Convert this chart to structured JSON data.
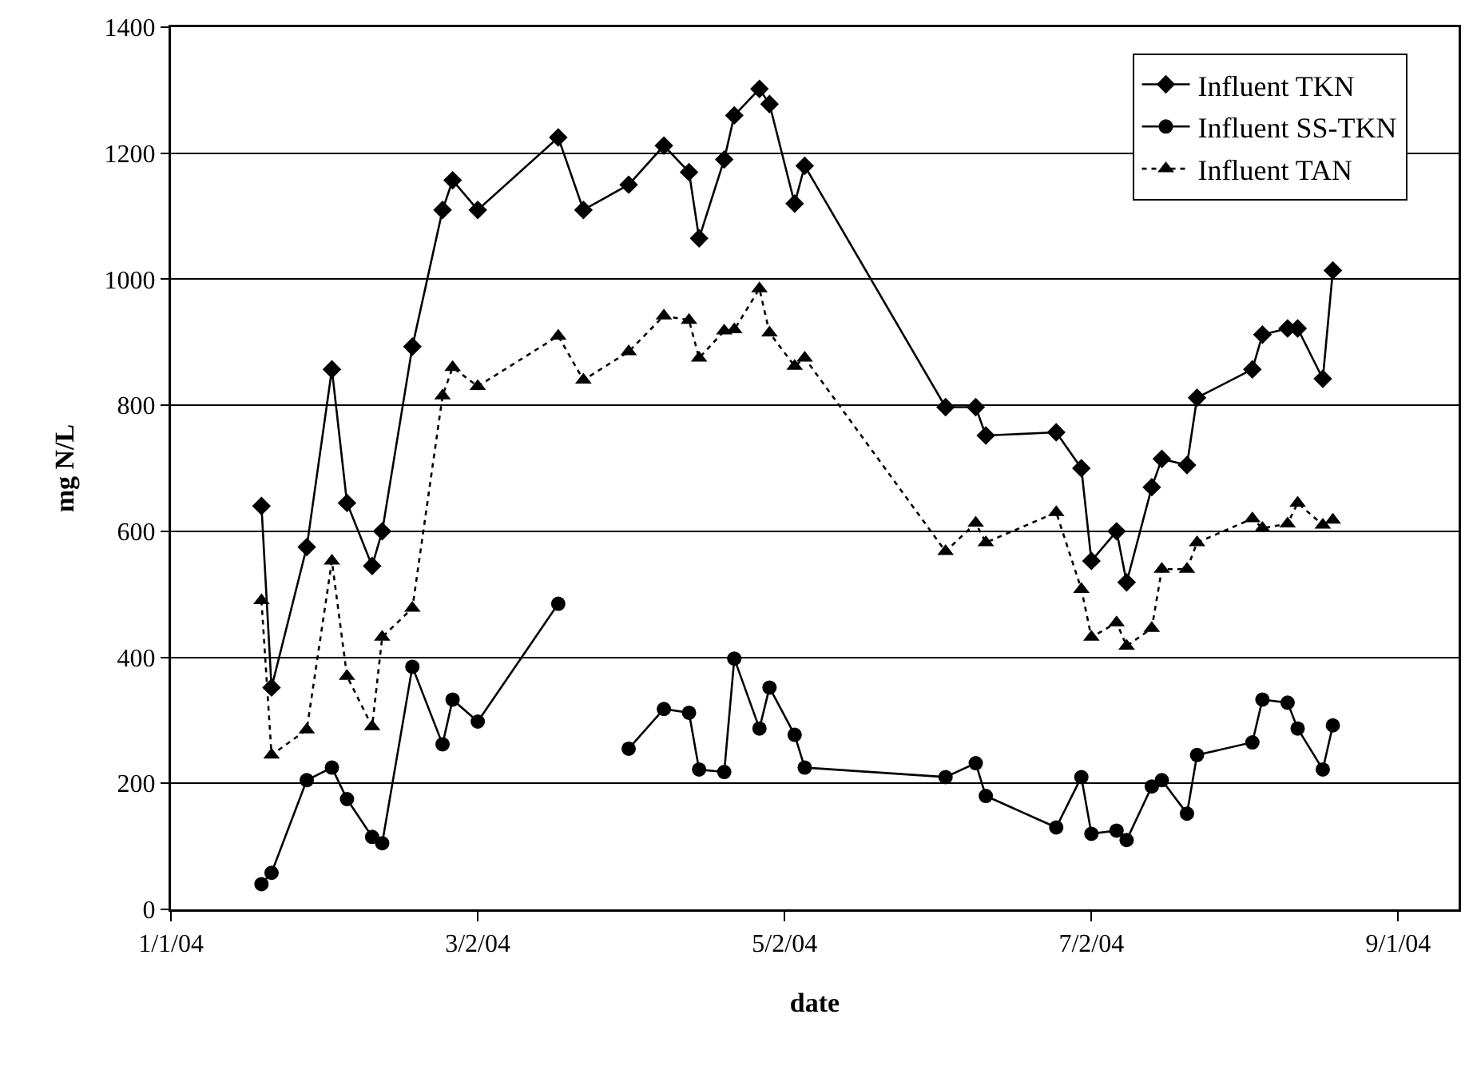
{
  "chart_data": {
    "type": "line",
    "xlabel": "date",
    "ylabel": "mg N/L",
    "x": [
      "2004-01-19",
      "2004-01-21",
      "2004-01-28",
      "2004-02-02",
      "2004-02-05",
      "2004-02-10",
      "2004-02-12",
      "2004-02-18",
      "2004-02-24",
      "2004-02-26",
      "2004-03-02",
      "2004-03-18",
      "2004-03-23",
      "2004-04-01",
      "2004-04-08",
      "2004-04-13",
      "2004-04-15",
      "2004-04-20",
      "2004-04-22",
      "2004-04-27",
      "2004-04-29",
      "2004-05-04",
      "2004-05-06",
      "2004-06-03",
      "2004-06-09",
      "2004-06-11",
      "2004-06-25",
      "2004-06-30",
      "2004-07-02",
      "2004-07-07",
      "2004-07-09",
      "2004-07-14",
      "2004-07-16",
      "2004-07-21",
      "2004-07-23",
      "2004-08-03",
      "2004-08-05",
      "2004-08-10",
      "2004-08-12",
      "2004-08-17",
      "2004-08-19"
    ],
    "series": [
      {
        "name": "Influent TKN",
        "color": "#000000",
        "marker": "diamond",
        "line_style": "solid",
        "values": [
          640,
          352,
          575,
          857,
          645,
          545,
          600,
          893,
          1110,
          1157,
          1110,
          1225,
          1110,
          1150,
          1212,
          1170,
          1065,
          1190,
          1260,
          1302,
          1278,
          1120,
          1180,
          797,
          797,
          752,
          757,
          700,
          553,
          600,
          519,
          670,
          715,
          705,
          812,
          857,
          912,
          922,
          922,
          842,
          1014
        ]
      },
      {
        "name": "Influent SS-TKN",
        "color": "#000000",
        "marker": "circle",
        "line_style": "solid",
        "values": [
          40,
          58,
          205,
          225,
          175,
          115,
          105,
          385,
          262,
          333,
          298,
          485,
          null,
          255,
          318,
          312,
          222,
          218,
          398,
          287,
          352,
          277,
          225,
          210,
          232,
          180,
          130,
          210,
          120,
          125,
          110,
          195,
          205,
          152,
          245,
          265,
          333,
          328,
          287,
          222,
          292
        ]
      },
      {
        "name": "Influent TAN",
        "color": "#000000",
        "marker": "triangle",
        "line_style": "dotted",
        "values": [
          490,
          245,
          285,
          553,
          370,
          290,
          432,
          478,
          815,
          860,
          830,
          910,
          840,
          885,
          942,
          935,
          875,
          918,
          920,
          985,
          915,
          862,
          875,
          568,
          613,
          582,
          630,
          508,
          432,
          455,
          418,
          446,
          540,
          540,
          582,
          620,
          605,
          612,
          645,
          610,
          618
        ]
      }
    ],
    "xlim": [
      "2004-01-01",
      "2004-09-13"
    ],
    "xticks": [
      {
        "value": "2004-01-01",
        "label": "1/1/04"
      },
      {
        "value": "2004-03-02",
        "label": "3/2/04"
      },
      {
        "value": "2004-05-02",
        "label": "5/2/04"
      },
      {
        "value": "2004-07-02",
        "label": "7/2/04"
      },
      {
        "value": "2004-09-01",
        "label": "9/1/04"
      }
    ],
    "ylim": [
      0,
      1400
    ],
    "yticks": [
      0,
      200,
      400,
      600,
      800,
      1000,
      1200,
      1400
    ],
    "grid": "y",
    "legend": "top right"
  }
}
